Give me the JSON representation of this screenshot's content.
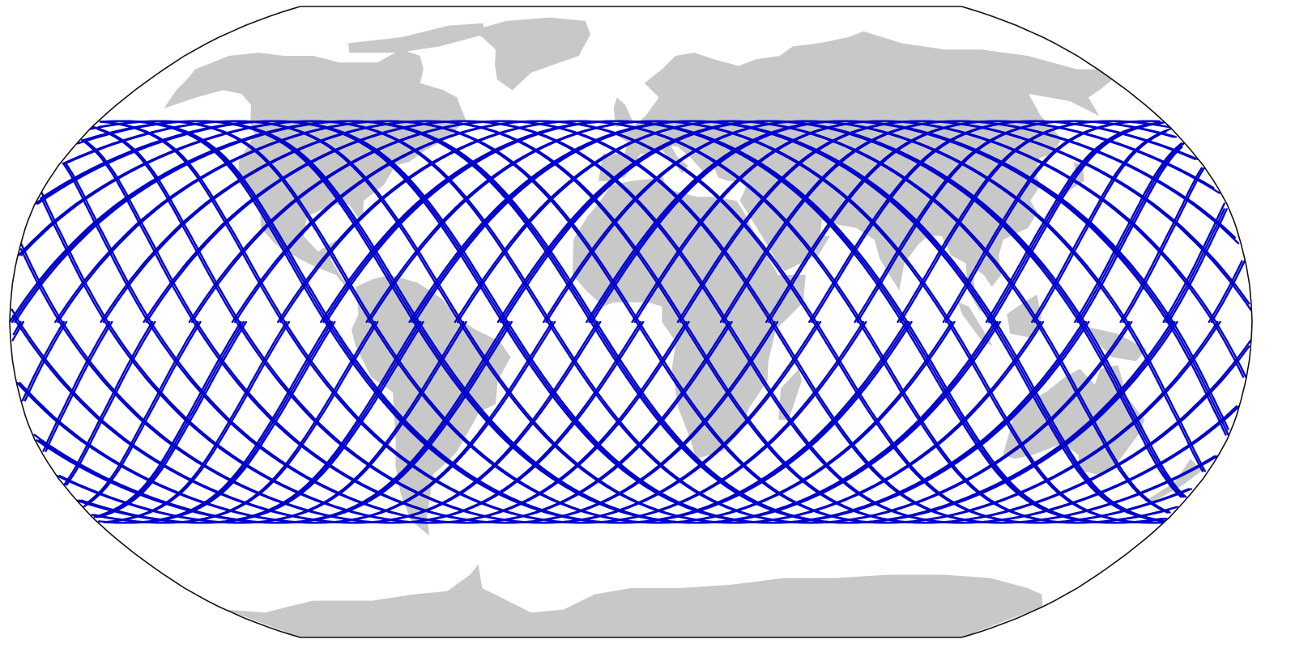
{
  "map": {
    "projection": "robinson",
    "land_color": "#c8c8c8",
    "ocean_color": "#ffffff",
    "frame_color": "#111111",
    "track_color": "#0000cc",
    "track_latitude_limit_deg": 51.6,
    "track_longitude_step_per_orbit_deg": 22.9,
    "track_count": 64,
    "title": "",
    "legend": null
  }
}
